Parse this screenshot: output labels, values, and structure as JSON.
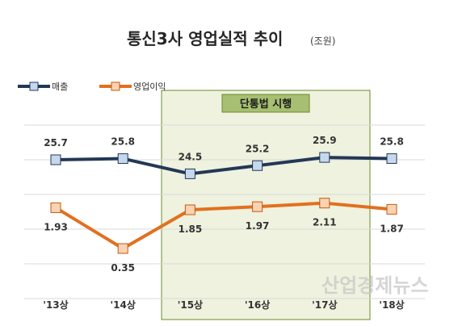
{
  "title": "통신3사 영업실적 추이",
  "unit": "(조원)",
  "policy_box_label": "단통법 시행",
  "watermark": "산업경제뉴스",
  "colors": {
    "revenue_line": "#233856",
    "revenue_marker_fill": "#c6d8ee",
    "revenue_marker_stroke": "#233856",
    "profit_line": "#e2701f",
    "profit_marker_fill": "#fbd3b2",
    "profit_marker_stroke": "#c35a12",
    "policy_box_fill": "#eef2de",
    "policy_box_stroke": "#6e8b2c",
    "policy_label_fill": "#a6bf72",
    "grid": "#d9d9d9"
  },
  "chart_data": {
    "type": "line",
    "categories": [
      "'13상",
      "'14상",
      "'15상",
      "'16상",
      "'17상",
      "'18상"
    ],
    "series": [
      {
        "name": "매출",
        "values": [
          25.7,
          25.8,
          24.5,
          25.2,
          25.9,
          25.8
        ],
        "labels": [
          "25.7",
          "25.8",
          "24.5",
          "25.2",
          "25.9",
          "25.8"
        ]
      },
      {
        "name": "영업이익",
        "values": [
          1.93,
          0.35,
          1.85,
          1.97,
          2.11,
          1.87
        ],
        "labels": [
          "1.93",
          "0.35",
          "1.85",
          "1.97",
          "2.11",
          "1.87"
        ]
      }
    ],
    "legend": "top-left",
    "grid": true,
    "highlight_range": [
      "'15상",
      "'17상"
    ]
  }
}
